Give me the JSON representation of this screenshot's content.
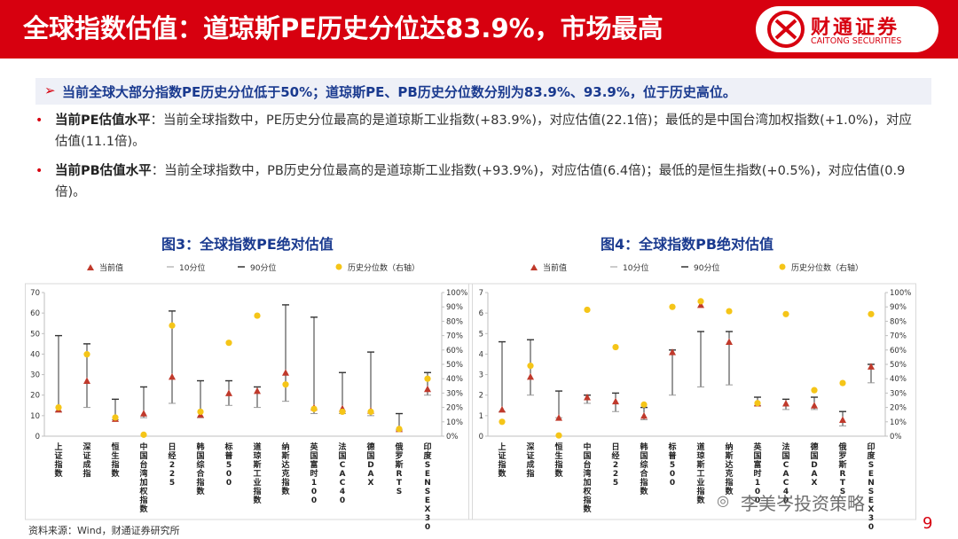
{
  "header": {
    "title": "全球指数估值：道琼斯PE历史分位达83.9%，市场最高",
    "logo_cn": "财通证券",
    "logo_en": "CAITONG SECURITIES"
  },
  "summary": {
    "arrow": "➢",
    "text": "当前全球大部分指数PE历史分位低于50%；道琼斯PE、PB历史分位数分别为83.9%、93.9%，位于历史高位。"
  },
  "bullets": [
    {
      "marker": "•",
      "label": "当前PE估值水平",
      "text": "：当前全球指数中，PE历史分位最高的是道琼斯工业指数(+83.9%)，对应估值(22.1倍)；最低的是中国台湾加权指数(+1.0%)，对应估值(11.1倍)。"
    },
    {
      "marker": "•",
      "label": "当前PB估值水平",
      "text": "：当前全球指数中，PB历史分位最高的是道琼斯工业指数(+93.9%)，对应估值(6.4倍)；最低的是恒生指数(+0.5%)，对应估值(0.9倍)。"
    }
  ],
  "footer": {
    "source": "资料来源：Wind，财通证券研究所",
    "watermark": "李美岑投资策略",
    "page": "9"
  },
  "colors": {
    "brand_red": "#d7000f",
    "navy": "#1a3a8f",
    "marker_red": "#c0392b",
    "marker_yellow": "#f5c518"
  },
  "chart_data": [
    {
      "type": "scatter",
      "title": "图3：全球指数PE绝对估值",
      "legend": [
        "当前值",
        "10分位",
        "90分位",
        "历史分位数（右轴）"
      ],
      "categories": [
        "上证指数",
        "深证成指",
        "恒生指数",
        "中国台湾加权指数",
        "日经225",
        "韩国综合指数",
        "标普500",
        "道琼斯工业指数",
        "纳斯达克指数",
        "英国富时100",
        "法国CAC40",
        "德国DAX",
        "俄罗斯RTS",
        "印度SENSEX30"
      ],
      "ylim": [
        0,
        70
      ],
      "yticks": [
        0,
        10,
        20,
        30,
        40,
        50,
        60,
        70
      ],
      "y2lim": [
        0,
        100
      ],
      "y2ticks": [
        "0%",
        "10%",
        "20%",
        "30%",
        "40%",
        "50%",
        "60%",
        "70%",
        "80%",
        "90%",
        "100%"
      ],
      "p10": [
        12,
        14,
        8,
        9,
        16,
        9,
        15,
        14,
        17,
        11,
        11,
        10,
        3,
        20
      ],
      "p90": [
        49,
        45,
        18,
        24,
        61,
        27,
        27,
        24,
        64,
        58,
        31,
        41,
        11,
        31
      ],
      "current": [
        13,
        27,
        8.5,
        11.1,
        29,
        10.5,
        21,
        22.1,
        31,
        14,
        13.5,
        12.5,
        3.5,
        23
      ],
      "percentile": [
        20,
        57,
        13,
        1.0,
        77,
        17,
        65,
        83.9,
        36,
        19,
        17,
        17,
        5,
        40
      ]
    },
    {
      "type": "scatter",
      "title": "图4：全球指数PB绝对估值",
      "legend": [
        "当前值",
        "10分位",
        "90分位",
        "历史分位数（右轴）"
      ],
      "categories": [
        "上证指数",
        "深证成指",
        "恒生指数",
        "中国台湾加权指数",
        "日经225",
        "韩国综合指数",
        "标普500",
        "道琼斯工业指数",
        "纳斯达克指数",
        "英国富时100",
        "法国CAC40",
        "德国DAX",
        "俄罗斯RTS",
        "印度SENSEX30"
      ],
      "ylim": [
        0,
        7
      ],
      "yticks": [
        0,
        1,
        2,
        3,
        4,
        5,
        6,
        7
      ],
      "y2lim": [
        0,
        100
      ],
      "y2ticks": [
        "0%",
        "10%",
        "20%",
        "30%",
        "40%",
        "50%",
        "60%",
        "70%",
        "80%",
        "90%",
        "100%"
      ],
      "p10": [
        1.2,
        2.0,
        0.9,
        1.6,
        1.2,
        0.8,
        2.0,
        2.4,
        2.5,
        1.5,
        1.3,
        1.3,
        0.5,
        2.6
      ],
      "p90": [
        4.6,
        4.7,
        2.2,
        2.0,
        2.1,
        1.4,
        4.2,
        5.1,
        5.1,
        1.9,
        1.8,
        1.9,
        1.2,
        3.5
      ],
      "current": [
        1.3,
        2.9,
        0.9,
        1.9,
        1.7,
        1.0,
        4.1,
        6.4,
        4.6,
        1.6,
        1.6,
        1.5,
        0.8,
        3.4
      ],
      "percentile": [
        10,
        49,
        0.5,
        88,
        62,
        22,
        90,
        93.9,
        87,
        23,
        85,
        32,
        37,
        85
      ]
    }
  ]
}
